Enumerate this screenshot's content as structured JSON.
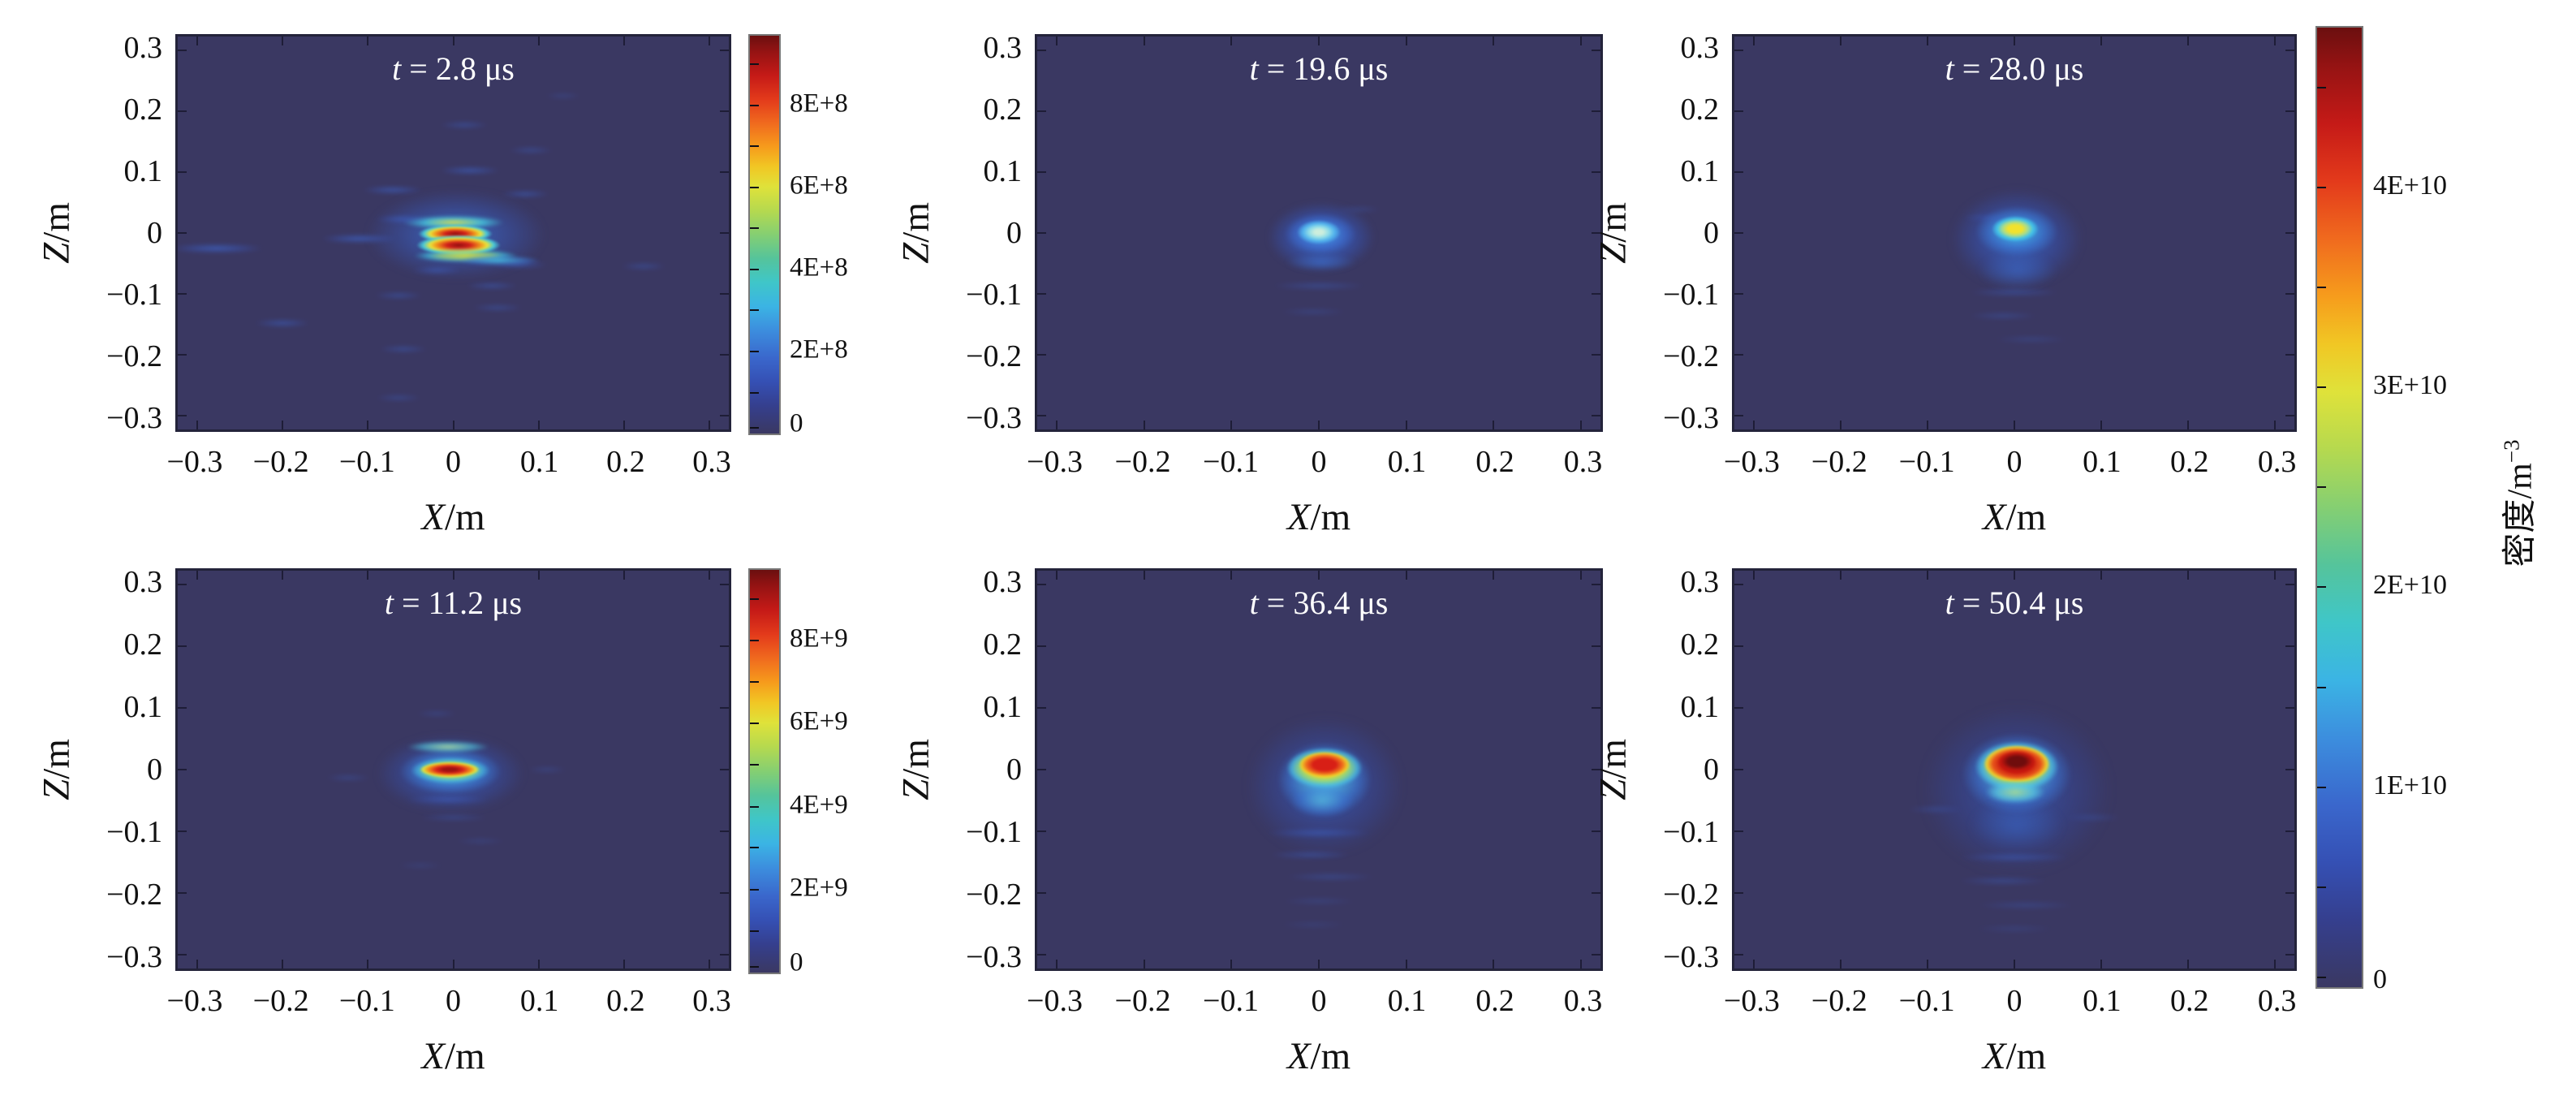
{
  "axes": {
    "x_var": "X",
    "y_var": "Z",
    "slash_unit": "/m",
    "x_ticks": [
      "−0.3",
      "−0.2",
      "−0.1",
      "0",
      "0.1",
      "0.2",
      "0.3"
    ],
    "y_ticks": [
      "0.3",
      "0.2",
      "0.1",
      "0",
      "−0.1",
      "−0.2",
      "−0.3"
    ]
  },
  "panels": [
    {
      "title_var": "t",
      "title_rest": " = 2.8 μs"
    },
    {
      "title_var": "t",
      "title_rest": " = 19.6 μs"
    },
    {
      "title_var": "t",
      "title_rest": " = 28.0 μs"
    },
    {
      "title_var": "t",
      "title_rest": " = 11.2 μs"
    },
    {
      "title_var": "t",
      "title_rest": " = 36.4 μs"
    },
    {
      "title_var": "t",
      "title_rest": " = 50.4 μs"
    }
  ],
  "colorbars": {
    "p1": {
      "ticks": [
        "8E+8",
        "6E+8",
        "4E+8",
        "2E+8",
        "0"
      ]
    },
    "p4": {
      "ticks": [
        "8E+9",
        "6E+9",
        "4E+9",
        "2E+9",
        "0"
      ]
    },
    "shared": {
      "ticks": [
        "4E+10",
        "3E+10",
        "2E+10",
        "1E+10",
        "0"
      ],
      "title_cn": "密度",
      "title_slash": "/m",
      "title_exp": "−3"
    }
  },
  "colors": {
    "figure_background": "#ffffff",
    "heatmap_background": "#3a3862",
    "title_text": "#ffffff",
    "axis_text": "#111111",
    "colormap": "jet"
  },
  "chart_data": {
    "type": "heatmap",
    "title": "",
    "xlabel": "X/m",
    "ylabel": "Z/m",
    "colorbar_label": "密度/m⁻³",
    "colormap": "jet",
    "layout": {
      "rows": 2,
      "cols": 3,
      "shared_colorbar_position": "right",
      "grid": false,
      "note": "Six X–Z plane particle-density maps at successive times; left-column panels carry their own colorbars, remaining four panels share the tall right colorbar"
    },
    "x_range": [
      -0.32,
      0.32
    ],
    "z_range": [
      -0.32,
      0.32
    ],
    "x_ticks": [
      -0.3,
      -0.2,
      -0.1,
      0,
      0.1,
      0.2,
      0.3
    ],
    "z_ticks": [
      0.3,
      0.2,
      0.1,
      0,
      -0.1,
      -0.2,
      -0.3
    ],
    "shared_colorbar": {
      "ticks": [
        0,
        10000000000.0,
        20000000000.0,
        30000000000.0,
        40000000000.0
      ],
      "max": 48000000000.0,
      "min": 0
    },
    "panels": [
      {
        "grid_position": [
          1,
          1
        ],
        "time_us": 2.8,
        "colorbar": "individual",
        "colorbar_ticks": [
          0,
          200000000.0,
          400000000.0,
          600000000.0,
          800000000.0
        ],
        "colorbar_max": 970000000.0,
        "peak_density_per_m3": 900000000.0,
        "blob_center_x_m": 0.0,
        "blob_center_z_m": 0.0,
        "morphology": "scattered horizontal filaments over the plane with two bright red elongated cores stacked near the origin, cyan-yellow bands around them"
      },
      {
        "grid_position": [
          1,
          2
        ],
        "time_us": 19.6,
        "colorbar": "shared",
        "colorbar_ticks": [
          0,
          10000000000.0,
          20000000000.0,
          30000000000.0,
          40000000000.0
        ],
        "colorbar_max": 48000000000.0,
        "peak_density_per_m3": 23000000000.0,
        "blob_center_x_m": 0.0,
        "blob_center_z_m": -0.005,
        "morphology": "small compact blob with pale cyan-white core and blue halo"
      },
      {
        "grid_position": [
          1,
          3
        ],
        "time_us": 28.0,
        "colorbar": "shared",
        "colorbar_ticks": [
          0,
          10000000000.0,
          20000000000.0,
          30000000000.0,
          40000000000.0
        ],
        "colorbar_max": 48000000000.0,
        "peak_density_per_m3": 32000000000.0,
        "blob_center_x_m": 0.0,
        "blob_center_z_m": -0.008,
        "morphology": "yellow-core blob with cyan ring, blue halo and faint downward tail"
      },
      {
        "grid_position": [
          2,
          1
        ],
        "time_us": 11.2,
        "colorbar": "individual",
        "colorbar_ticks": [
          0,
          2000000000.0,
          4000000000.0,
          6000000000.0,
          8000000000.0
        ],
        "colorbar_max": 9700000000.0,
        "peak_density_per_m3": 9000000000.0,
        "blob_center_x_m": 0.0,
        "blob_center_z_m": 0.0,
        "morphology": "horizontally elongated dark-red core with yellow ring, cyan ellipse, pale green band above, faint streaks"
      },
      {
        "grid_position": [
          2,
          2
        ],
        "time_us": 36.4,
        "colorbar": "shared",
        "colorbar_ticks": [
          0,
          10000000000.0,
          20000000000.0,
          30000000000.0,
          40000000000.0
        ],
        "colorbar_max": 48000000000.0,
        "peak_density_per_m3": 42000000000.0,
        "blob_center_x_m": 0.005,
        "blob_center_z_m": -0.01,
        "morphology": "red core with yellow ring and broad cyan plume extending downward into blue streaks"
      },
      {
        "grid_position": [
          2,
          3
        ],
        "time_us": 50.4,
        "colorbar": "shared",
        "colorbar_ticks": [
          0,
          10000000000.0,
          20000000000.0,
          30000000000.0,
          40000000000.0
        ],
        "colorbar_max": 48000000000.0,
        "peak_density_per_m3": 47000000000.0,
        "blob_center_x_m": 0.005,
        "blob_center_z_m": -0.005,
        "morphology": "dark-red core with red and yellow rings, green-cyan patch below, widest blue halo with downward streaks"
      }
    ]
  }
}
